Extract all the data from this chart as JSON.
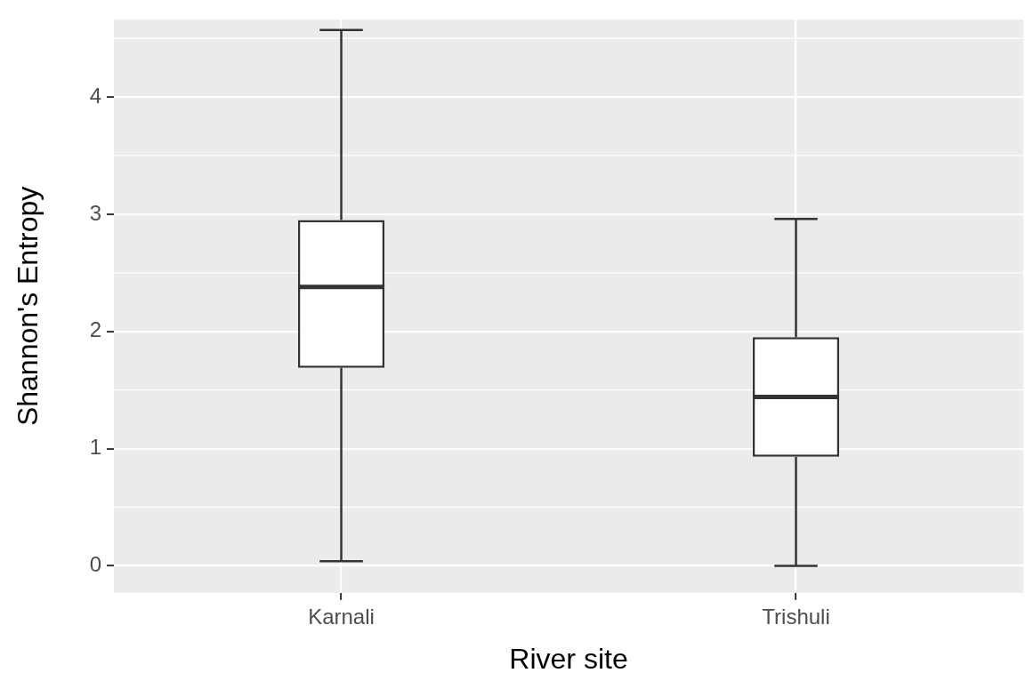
{
  "chart_data": {
    "type": "box",
    "xlabel": "River site",
    "ylabel": "Shannon's Entropy",
    "categories": [
      "Karnali",
      "Trishuli"
    ],
    "boxes": [
      {
        "low": 0.04,
        "q1": 1.69,
        "median": 2.38,
        "q3": 2.95,
        "high": 4.57
      },
      {
        "low": 0,
        "q1": 0.93,
        "median": 1.44,
        "q3": 1.95,
        "high": 2.96
      }
    ],
    "color": "#333333",
    "ylim": [
      -0.23,
      4.66
    ],
    "yticks": [
      0,
      1,
      2,
      3,
      4
    ],
    "grid": true
  }
}
